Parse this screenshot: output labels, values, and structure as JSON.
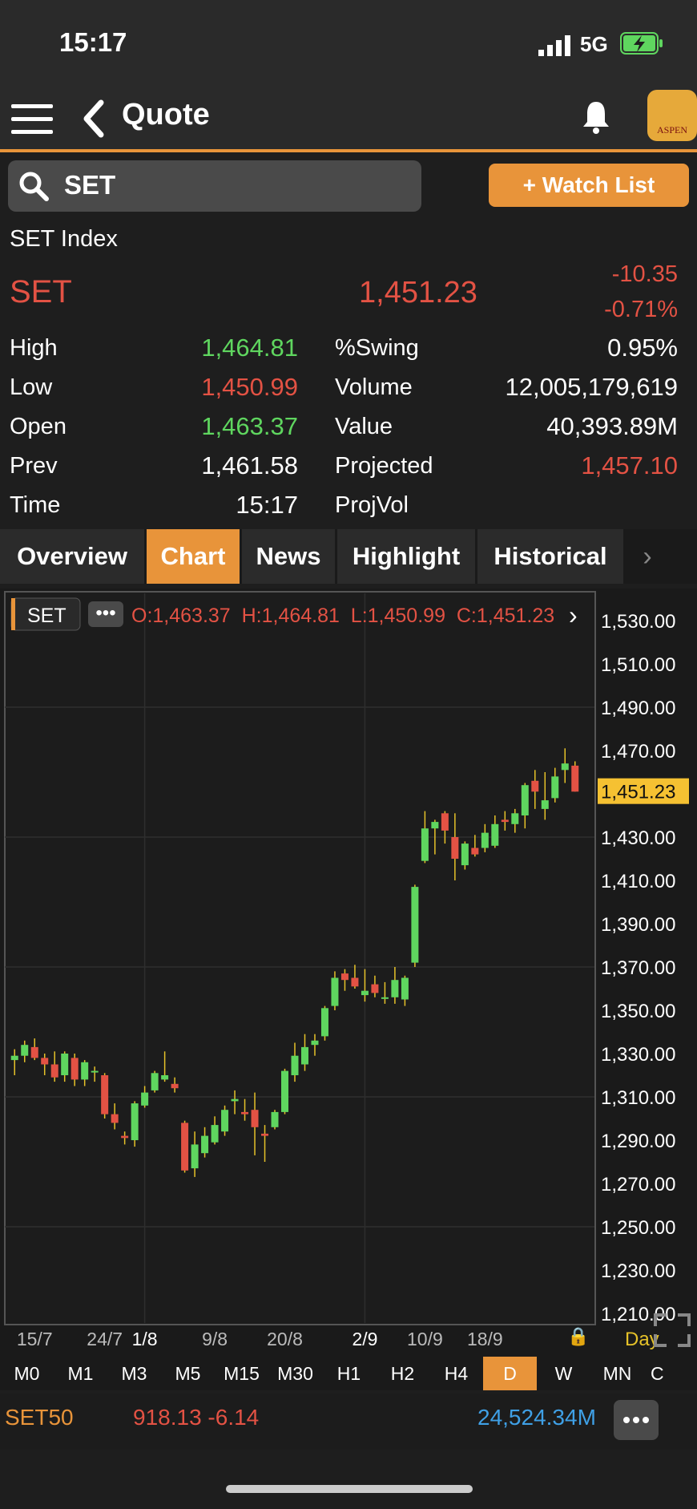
{
  "status_bar": {
    "time": "15:17",
    "network": "5G"
  },
  "nav": {
    "title": "Quote"
  },
  "search": {
    "value": "SET"
  },
  "watchlist_label": "+ Watch List",
  "quote": {
    "index_name": "SET Index",
    "symbol": "SET",
    "last": "1,451.23",
    "change": "-10.35",
    "change_pct": "-0.71%",
    "stats_left": [
      {
        "label": "High",
        "value": "1,464.81",
        "color": "#5fd65f"
      },
      {
        "label": "Low",
        "value": "1,450.99",
        "color": "#e35244"
      },
      {
        "label": "Open",
        "value": "1,463.37",
        "color": "#5fd65f"
      },
      {
        "label": "Prev",
        "value": "1,461.58",
        "color": "#ffffff"
      },
      {
        "label": "Time",
        "value": "15:17",
        "color": "#ffffff"
      }
    ],
    "stats_right": [
      {
        "label": "%Swing",
        "value": "0.95%",
        "color": "#ffffff"
      },
      {
        "label": "Volume",
        "value": "12,005,179,619",
        "color": "#ffffff"
      },
      {
        "label": "Value",
        "value": "40,393.89M",
        "color": "#ffffff"
      },
      {
        "label": "Projected",
        "value": "1,457.10",
        "color": "#e35244"
      },
      {
        "label": "ProjVol",
        "value": "",
        "color": "#ffffff"
      }
    ]
  },
  "tabs": [
    "Overview",
    "Chart",
    "News",
    "Highlight",
    "Historical"
  ],
  "active_tab": "Chart",
  "chart_header": {
    "symbol": "SET",
    "ohlc": "O:1,463.37  H:1,464.81  L:1,450.99  C:1,451.23"
  },
  "chart_data": {
    "type": "candlestick",
    "ylim": [
      1210,
      1530
    ],
    "yticks": [
      "1,530.00",
      "1,510.00",
      "1,490.00",
      "1,470.00",
      "1,451.23",
      "1,430.00",
      "1,410.00",
      "1,390.00",
      "1,370.00",
      "1,350.00",
      "1,330.00",
      "1,310.00",
      "1,290.00",
      "1,270.00",
      "1,250.00",
      "1,230.00",
      "1,210.00"
    ],
    "last_price": 1451.23,
    "last_price_label": "1,451.23",
    "xticks": [
      "15/7",
      "24/7",
      "1/8",
      "9/8",
      "20/8",
      "2/9",
      "10/9",
      "18/9"
    ],
    "xtick_index": [
      2,
      9,
      13,
      20,
      27,
      35,
      41,
      47
    ],
    "grid": true,
    "up_color": "#5fd65f",
    "down_color": "#e35244",
    "candles": [
      [
        1327,
        1332,
        1320,
        1329
      ],
      [
        1329,
        1336,
        1326,
        1334
      ],
      [
        1333,
        1337,
        1327,
        1328
      ],
      [
        1328,
        1330,
        1320,
        1325
      ],
      [
        1325,
        1331,
        1317,
        1319
      ],
      [
        1320,
        1331,
        1317,
        1330
      ],
      [
        1328,
        1330,
        1315,
        1318
      ],
      [
        1318,
        1327,
        1315,
        1326
      ],
      [
        1322,
        1324,
        1317,
        1322
      ],
      [
        1320,
        1321,
        1300,
        1302
      ],
      [
        1302,
        1307,
        1295,
        1298
      ],
      [
        1292,
        1294,
        1288,
        1291
      ],
      [
        1290,
        1308,
        1287,
        1307
      ],
      [
        1306,
        1315,
        1305,
        1312
      ],
      [
        1313,
        1322,
        1312,
        1321
      ],
      [
        1318,
        1331,
        1317,
        1320
      ],
      [
        1316,
        1319,
        1312,
        1314
      ],
      [
        1298,
        1299,
        1275,
        1276
      ],
      [
        1277,
        1294,
        1273,
        1288
      ],
      [
        1284,
        1296,
        1282,
        1292
      ],
      [
        1289,
        1301,
        1288,
        1297
      ],
      [
        1294,
        1306,
        1292,
        1304
      ],
      [
        1308,
        1313,
        1302,
        1309
      ],
      [
        1303,
        1309,
        1299,
        1302
      ],
      [
        1304,
        1312,
        1283,
        1296
      ],
      [
        1293,
        1297,
        1280,
        1292
      ],
      [
        1296,
        1304,
        1295,
        1303
      ],
      [
        1303,
        1323,
        1302,
        1322
      ],
      [
        1320,
        1335,
        1317,
        1329
      ],
      [
        1325,
        1339,
        1322,
        1333
      ],
      [
        1334,
        1339,
        1329,
        1336
      ],
      [
        1338,
        1352,
        1336,
        1351
      ],
      [
        1352,
        1368,
        1350,
        1365
      ],
      [
        1367,
        1369,
        1359,
        1364
      ],
      [
        1365,
        1371,
        1360,
        1361
      ],
      [
        1357,
        1369,
        1354,
        1359
      ],
      [
        1362,
        1366,
        1356,
        1358
      ],
      [
        1356,
        1363,
        1353,
        1356
      ],
      [
        1356,
        1370,
        1353,
        1364
      ],
      [
        1355,
        1366,
        1352,
        1365
      ],
      [
        1372,
        1408,
        1370,
        1407
      ],
      [
        1419,
        1442,
        1418,
        1434
      ],
      [
        1434,
        1438,
        1422,
        1437
      ],
      [
        1441,
        1442,
        1427,
        1433
      ],
      [
        1430,
        1441,
        1410,
        1420
      ],
      [
        1417,
        1428,
        1415,
        1427
      ],
      [
        1425,
        1431,
        1421,
        1422
      ],
      [
        1425,
        1436,
        1423,
        1432
      ],
      [
        1426,
        1440,
        1425,
        1436
      ],
      [
        1438,
        1442,
        1433,
        1437
      ],
      [
        1436,
        1443,
        1432,
        1441
      ],
      [
        1440,
        1455,
        1434,
        1454
      ],
      [
        1456,
        1461,
        1443,
        1451
      ],
      [
        1443,
        1460,
        1438,
        1447
      ],
      [
        1448,
        1462,
        1446,
        1458
      ],
      [
        1461,
        1471,
        1455,
        1464
      ],
      [
        1463,
        1465,
        1451,
        1451
      ]
    ]
  },
  "x_extra": {
    "lock_label": "🔒",
    "period": "Day"
  },
  "timeframes": [
    "M0",
    "M1",
    "M3",
    "M5",
    "M15",
    "M30",
    "H1",
    "H2",
    "H4",
    "D",
    "W",
    "MN",
    "C"
  ],
  "active_timeframe": "D",
  "ticker": {
    "symbol": "SET50",
    "price": "918.13 -6.14",
    "value": "24,524.34M"
  }
}
